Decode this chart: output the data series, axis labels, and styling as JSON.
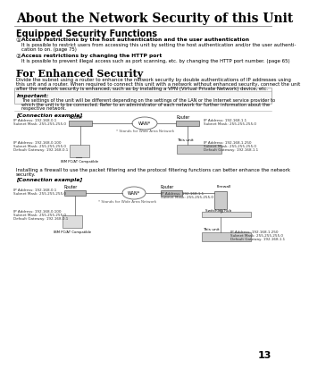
{
  "title": "About the Network Security of this Unit",
  "page_num": "13",
  "bg_color": "#ffffff",
  "section1_title": "Equipped Security Functions",
  "item1_bold": "Access restrictions by the host authentication and the user authentication",
  "item1_text": "It is possible to restrict users from accessing this unit by setting the host authentication and/or the user authentication to on. (page 75)",
  "item2_bold": "Access restrictions by changing the HTTP port",
  "item2_text": "It is possible to prevent illegal access such as port scanning, etc. by changing the HTTP port number. (page 65)",
  "section2_title": "For Enhanced Security",
  "section2_text1": "Divide the subnet using a router to enhance the network security by double authentications of IP addresses using",
  "section2_text2": "this unit and a router. When required to connect this unit with a network without enhanced security, connect the unit",
  "section2_text3": "after the network security is enhanced, such as by installing a VPN (Virtual Private Network) device, etc.",
  "important_label": "Important:",
  "important_line1": "The settings of the unit will be different depending on the settings of the LAN or the Internet service provider to",
  "important_line2": "which the unit is to be connected. Refer to an administrator of each network for further information about the",
  "important_line3": "respective network.",
  "connection_label": "[Connection example]",
  "firewall_text1": "Installing a firewall to use the packet filtering and the protocol filtering functions can better enhance the network",
  "firewall_text2": "security.",
  "connection_label2": "[Connection example]",
  "wan_note": "* Stands for Wide Area Network",
  "wan_note2": "* Stands for Wide Area Network"
}
